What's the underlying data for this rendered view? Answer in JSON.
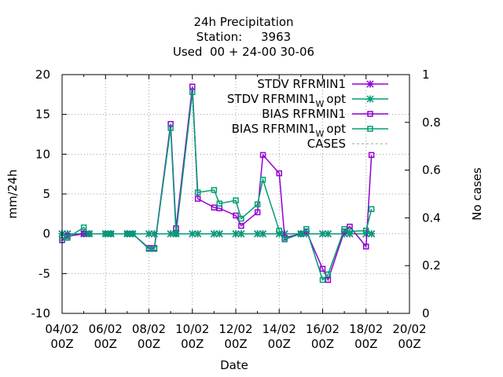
{
  "chart_data": {
    "type": "line",
    "title": [
      "24h Precipitation",
      "Station:     3963",
      "Used  00 + 24-00 30-06"
    ],
    "xlabel": "Date",
    "ylabel": "mm/24h",
    "y2label": "No cases",
    "xlim": [
      0,
      16
    ],
    "ylim": [
      -10,
      20
    ],
    "y2lim": [
      0,
      1
    ],
    "grid": true,
    "legend_position": "top-right",
    "x_ticks": [
      {
        "x": 0,
        "line1": "04/02",
        "line2": "00Z"
      },
      {
        "x": 2,
        "line1": "06/02",
        "line2": "00Z"
      },
      {
        "x": 4,
        "line1": "08/02",
        "line2": "00Z"
      },
      {
        "x": 6,
        "line1": "10/02",
        "line2": "00Z"
      },
      {
        "x": 8,
        "line1": "12/02",
        "line2": "00Z"
      },
      {
        "x": 10,
        "line1": "14/02",
        "line2": "00Z"
      },
      {
        "x": 12,
        "line1": "16/02",
        "line2": "00Z"
      },
      {
        "x": 14,
        "line1": "18/02",
        "line2": "00Z"
      },
      {
        "x": 16,
        "line1": "20/02",
        "line2": "00Z"
      }
    ],
    "y_ticks": [
      "-10",
      "-5",
      "0",
      "5",
      "10",
      "15",
      "20"
    ],
    "y2_ticks": [
      "0",
      "0.2",
      "0.4",
      "0.6",
      "0.8",
      "1"
    ],
    "series": [
      {
        "name": "STDV RFRMIN1",
        "marker": "star",
        "color": "#9400d3",
        "points": [
          [
            0,
            0
          ],
          [
            0.25,
            0
          ],
          [
            1,
            0
          ],
          [
            1.25,
            0
          ],
          [
            2,
            0
          ],
          [
            2.25,
            0
          ],
          [
            3,
            0
          ],
          [
            3.25,
            0
          ],
          [
            4,
            0
          ],
          [
            4.25,
            0
          ],
          [
            5,
            0
          ],
          [
            5.25,
            0
          ],
          [
            6,
            0
          ],
          [
            6.25,
            0
          ],
          [
            7,
            0
          ],
          [
            7.25,
            0
          ],
          [
            8,
            0
          ],
          [
            8.25,
            0
          ],
          [
            9,
            0
          ],
          [
            9.25,
            0
          ],
          [
            10,
            0
          ],
          [
            10.25,
            0
          ],
          [
            11,
            0
          ],
          [
            11.25,
            0
          ],
          [
            12,
            0
          ],
          [
            12.25,
            0
          ],
          [
            13,
            0
          ],
          [
            13.25,
            0
          ],
          [
            14,
            0
          ],
          [
            14.25,
            0
          ]
        ]
      },
      {
        "name": "STDV RFRMIN1",
        "name_sub": "W",
        "name_suffix": "opt",
        "marker": "star",
        "color": "#009e73",
        "points": [
          [
            0,
            0
          ],
          [
            0.25,
            0
          ],
          [
            1,
            0
          ],
          [
            1.25,
            0
          ],
          [
            2,
            0
          ],
          [
            2.25,
            0
          ],
          [
            3,
            0
          ],
          [
            3.25,
            0
          ],
          [
            4,
            0
          ],
          [
            4.25,
            0
          ],
          [
            5,
            0
          ],
          [
            5.25,
            0
          ],
          [
            6,
            0
          ],
          [
            6.25,
            0
          ],
          [
            7,
            0
          ],
          [
            7.25,
            0
          ],
          [
            8,
            0
          ],
          [
            8.25,
            0
          ],
          [
            9,
            0
          ],
          [
            9.25,
            0
          ],
          [
            10,
            0
          ],
          [
            10.25,
            0
          ],
          [
            11,
            0
          ],
          [
            11.25,
            0
          ],
          [
            12,
            0
          ],
          [
            12.25,
            0
          ],
          [
            13,
            0
          ],
          [
            13.25,
            0
          ],
          [
            14,
            0
          ],
          [
            14.25,
            0
          ]
        ]
      },
      {
        "name": "BIAS RFRMIN1",
        "marker": "square",
        "color": "#9400d3",
        "points": [
          [
            0,
            -0.8
          ],
          [
            0.25,
            -0.3
          ],
          [
            1,
            0
          ],
          [
            1.25,
            0
          ],
          [
            2,
            0
          ],
          [
            2.25,
            0
          ],
          [
            3,
            0
          ],
          [
            3.25,
            0
          ],
          [
            4,
            -1.8
          ],
          [
            4.25,
            -1.8
          ],
          [
            5,
            13.8
          ],
          [
            5.25,
            0.7
          ],
          [
            6,
            18.5
          ],
          [
            6.25,
            4.4
          ],
          [
            7,
            3.3
          ],
          [
            7.25,
            3.2
          ],
          [
            8,
            2.3
          ],
          [
            8.25,
            1
          ],
          [
            9,
            2.7
          ],
          [
            9.25,
            9.9
          ],
          [
            10,
            7.6
          ],
          [
            10.25,
            -0.5
          ],
          [
            11,
            0
          ],
          [
            11.25,
            0.3
          ],
          [
            12,
            -4.4
          ],
          [
            12.25,
            -5.8
          ],
          [
            13,
            0.3
          ],
          [
            13.25,
            0.9
          ],
          [
            14,
            -1.6
          ],
          [
            14.25,
            9.9
          ]
        ]
      },
      {
        "name": "BIAS RFRMIN1",
        "name_sub": "W",
        "name_suffix": "opt",
        "marker": "square",
        "color": "#009e73",
        "points": [
          [
            0,
            -0.5
          ],
          [
            0.25,
            -0.5
          ],
          [
            1,
            0.8
          ],
          [
            1.25,
            0
          ],
          [
            2,
            0
          ],
          [
            2.25,
            0
          ],
          [
            3,
            0
          ],
          [
            3.25,
            0
          ],
          [
            4,
            -1.9
          ],
          [
            4.25,
            -1.9
          ],
          [
            5,
            13.3
          ],
          [
            5.25,
            0
          ],
          [
            6,
            17.8
          ],
          [
            6.25,
            5.2
          ],
          [
            7,
            5.5
          ],
          [
            7.25,
            3.8
          ],
          [
            8,
            4.2
          ],
          [
            8.25,
            1.9
          ],
          [
            9,
            3.7
          ],
          [
            9.25,
            6.8
          ],
          [
            10,
            0.4
          ],
          [
            10.25,
            -0.7
          ],
          [
            11,
            0
          ],
          [
            11.25,
            0.6
          ],
          [
            12,
            -5.8
          ],
          [
            12.25,
            -5.1
          ],
          [
            13,
            0.6
          ],
          [
            13.25,
            0.3
          ],
          [
            14,
            0.4
          ],
          [
            14.25,
            3.1
          ]
        ]
      },
      {
        "name": "CASES",
        "marker": "none",
        "color": "#a0a0a0",
        "dashed": true,
        "points": []
      }
    ]
  }
}
